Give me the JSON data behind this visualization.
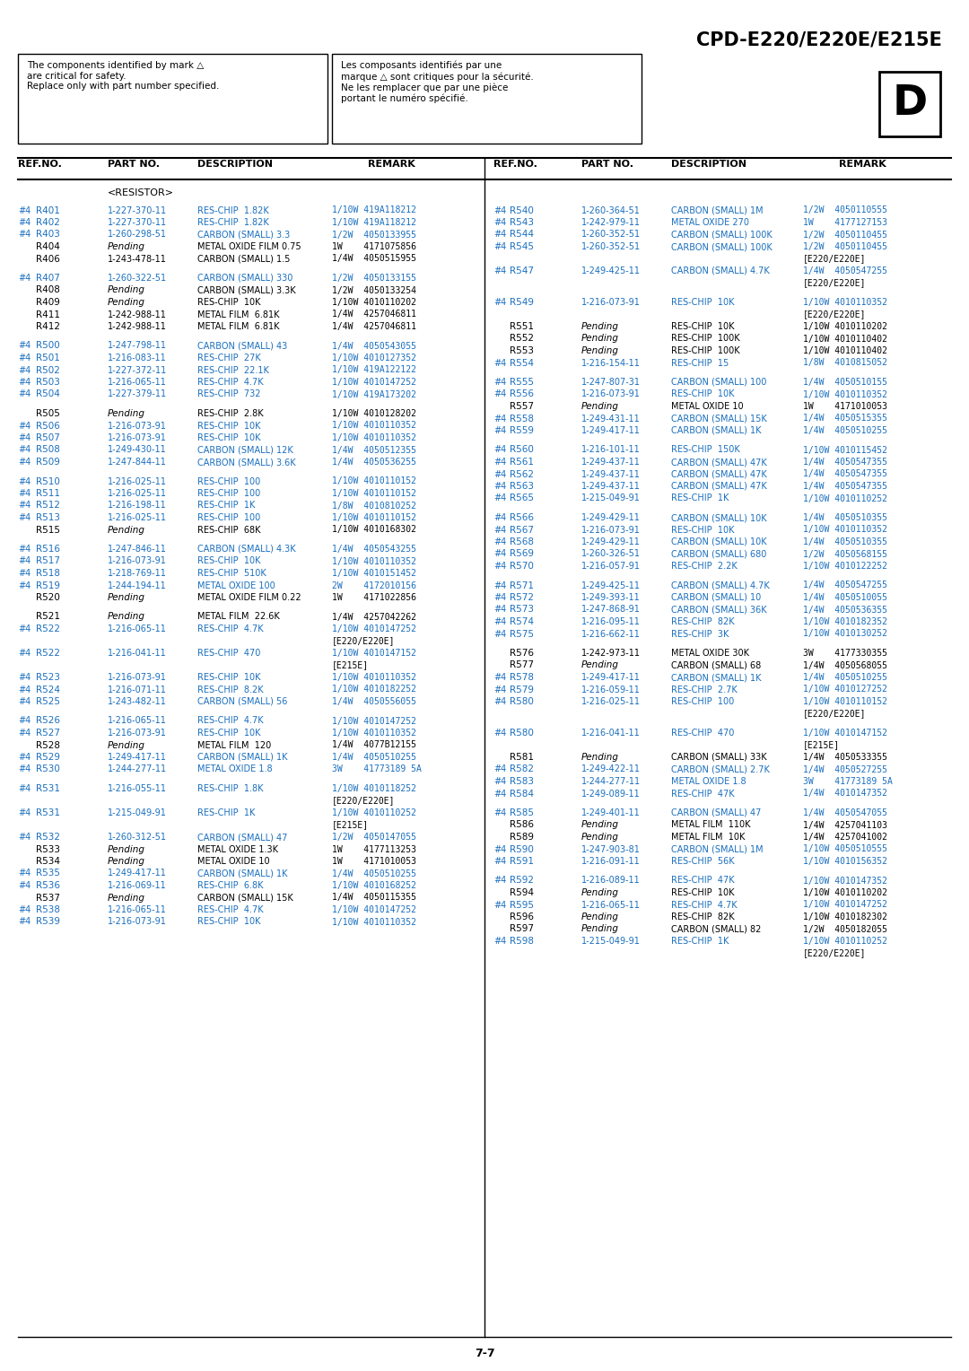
{
  "title": "CPD-E220/E220E/E215E",
  "section_label": "D",
  "warning_text_en": "The components identified by mark △\nare critical for safety.\nReplace only with part number specified.",
  "warning_text_fr": "Les composants identifiés par une\nmarque △ sont critiques pour la sécurité.\nNe les remplacer que par une pièce\nportant le numéro spécifié.",
  "category": "<RESISTOR>",
  "blue": "#1a6fbe",
  "black": "#000000",
  "left_rows": [
    [
      "#4",
      "R401",
      "1-227-370-11",
      "RES-CHIP",
      "1.82K",
      "1/10W 419A118212"
    ],
    [
      "#4",
      "R402",
      "1-227-370-11",
      "RES-CHIP",
      "1.82K",
      "1/10W 419A118212"
    ],
    [
      "#4",
      "R403",
      "1-260-298-51",
      "CARBON (SMALL) 3.3",
      "",
      "1/2W  4050133955"
    ],
    [
      "",
      "R404",
      "Pending",
      "METAL OXIDE FILM 0.75",
      "",
      "1W    4171075856"
    ],
    [
      "",
      "R406",
      "1-243-478-11",
      "CARBON (SMALL) 1.5",
      "",
      "1/4W  4050515955"
    ],
    [
      "",
      "",
      "",
      "",
      "",
      ""
    ],
    [
      "#4",
      "R407",
      "1-260-322-51",
      "CARBON (SMALL) 330",
      "",
      "1/2W  4050133155"
    ],
    [
      "",
      "R408",
      "Pending",
      "CARBON (SMALL) 3.3K",
      "",
      "1/2W  4050133254"
    ],
    [
      "",
      "R409",
      "Pending",
      "RES-CHIP",
      "10K",
      "1/10W 4010110202"
    ],
    [
      "",
      "R411",
      "1-242-988-11",
      "METAL FILM",
      "6.81K",
      "1/4W  4257046811"
    ],
    [
      "",
      "R412",
      "1-242-988-11",
      "METAL FILM",
      "6.81K",
      "1/4W  4257046811"
    ],
    [
      "",
      "",
      "",
      "",
      "",
      ""
    ],
    [
      "#4",
      "R500",
      "1-247-798-11",
      "CARBON (SMALL) 43",
      "",
      "1/4W  4050543055"
    ],
    [
      "#4",
      "R501",
      "1-216-083-11",
      "RES-CHIP",
      "27K",
      "1/10W 4010127352"
    ],
    [
      "#4",
      "R502",
      "1-227-372-11",
      "RES-CHIP",
      "22.1K",
      "1/10W 419A122122"
    ],
    [
      "#4",
      "R503",
      "1-216-065-11",
      "RES-CHIP",
      "4.7K",
      "1/10W 4010147252"
    ],
    [
      "#4",
      "R504",
      "1-227-379-11",
      "RES-CHIP",
      "732",
      "1/10W 419A173202"
    ],
    [
      "",
      "",
      "",
      "",
      "",
      ""
    ],
    [
      "",
      "R505",
      "Pending",
      "RES-CHIP",
      "2.8K",
      "1/10W 4010128202"
    ],
    [
      "#4",
      "R506",
      "1-216-073-91",
      "RES-CHIP",
      "10K",
      "1/10W 4010110352"
    ],
    [
      "#4",
      "R507",
      "1-216-073-91",
      "RES-CHIP",
      "10K",
      "1/10W 4010110352"
    ],
    [
      "#4",
      "R508",
      "1-249-430-11",
      "CARBON (SMALL) 12K",
      "",
      "1/4W  4050512355"
    ],
    [
      "#4",
      "R509",
      "1-247-844-11",
      "CARBON (SMALL) 3.6K",
      "",
      "1/4W  4050536255"
    ],
    [
      "",
      "",
      "",
      "",
      "",
      ""
    ],
    [
      "#4",
      "R510",
      "1-216-025-11",
      "RES-CHIP",
      "100",
      "1/10W 4010110152"
    ],
    [
      "#4",
      "R511",
      "1-216-025-11",
      "RES-CHIP",
      "100",
      "1/10W 4010110152"
    ],
    [
      "#4",
      "R512",
      "1-216-198-11",
      "RES-CHIP",
      "1K",
      "1/8W  4010810252"
    ],
    [
      "#4",
      "R513",
      "1-216-025-11",
      "RES-CHIP",
      "100",
      "1/10W 4010110152"
    ],
    [
      "",
      "R515",
      "Pending",
      "RES-CHIP",
      "68K",
      "1/10W 4010168302"
    ],
    [
      "",
      "",
      "",
      "",
      "",
      ""
    ],
    [
      "#4",
      "R516",
      "1-247-846-11",
      "CARBON (SMALL) 4.3K",
      "",
      "1/4W  4050543255"
    ],
    [
      "#4",
      "R517",
      "1-216-073-91",
      "RES-CHIP",
      "10K",
      "1/10W 4010110352"
    ],
    [
      "#4",
      "R518",
      "1-218-769-11",
      "RES-CHIP",
      "510K",
      "1/10W 4010151452"
    ],
    [
      "#4",
      "R519",
      "1-244-194-11",
      "METAL OXIDE 100",
      "",
      "2W    4172010156"
    ],
    [
      "",
      "R520",
      "Pending",
      "METAL OXIDE FILM 0.22",
      "",
      "1W    4171022856"
    ],
    [
      "",
      "",
      "",
      "",
      "",
      ""
    ],
    [
      "",
      "R521",
      "Pending",
      "METAL FILM",
      "22.6K",
      "1/4W  4257042262"
    ],
    [
      "#4",
      "R522",
      "1-216-065-11",
      "RES-CHIP",
      "4.7K",
      "1/10W 4010147252"
    ],
    [
      "",
      "",
      "",
      "",
      "",
      "[E220/E220E]"
    ],
    [
      "#4",
      "R522",
      "1-216-041-11",
      "RES-CHIP",
      "470",
      "1/10W 4010147152"
    ],
    [
      "",
      "",
      "",
      "",
      "",
      "[E215E]"
    ],
    [
      "#4",
      "R523",
      "1-216-073-91",
      "RES-CHIP",
      "10K",
      "1/10W 4010110352"
    ],
    [
      "#4",
      "R524",
      "1-216-071-11",
      "RES-CHIP",
      "8.2K",
      "1/10W 4010182252"
    ],
    [
      "#4",
      "R525",
      "1-243-482-11",
      "CARBON (SMALL) 56",
      "",
      "1/4W  4050556055"
    ],
    [
      "",
      "",
      "",
      "",
      "",
      ""
    ],
    [
      "#4",
      "R526",
      "1-216-065-11",
      "RES-CHIP",
      "4.7K",
      "1/10W 4010147252"
    ],
    [
      "#4",
      "R527",
      "1-216-073-91",
      "RES-CHIP",
      "10K",
      "1/10W 4010110352"
    ],
    [
      "",
      "R528",
      "Pending",
      "METAL FILM",
      "120",
      "1/4W  4077B12155"
    ],
    [
      "#4",
      "R529",
      "1-249-417-11",
      "CARBON (SMALL) 1K",
      "",
      "1/4W  4050510255"
    ],
    [
      "#4",
      "R530",
      "1-244-277-11",
      "METAL OXIDE 1.8",
      "",
      "3W    41773189 5A"
    ],
    [
      "",
      "",
      "",
      "",
      "",
      ""
    ],
    [
      "#4",
      "R531",
      "1-216-055-11",
      "RES-CHIP",
      "1.8K",
      "1/10W 4010118252"
    ],
    [
      "",
      "",
      "",
      "",
      "",
      "[E220/E220E]"
    ],
    [
      "#4",
      "R531",
      "1-215-049-91",
      "RES-CHIP",
      "1K",
      "1/10W 4010110252"
    ],
    [
      "",
      "",
      "",
      "",
      "",
      "[E215E]"
    ],
    [
      "#4",
      "R532",
      "1-260-312-51",
      "CARBON (SMALL) 47",
      "",
      "1/2W  4050147055"
    ],
    [
      "",
      "R533",
      "Pending",
      "METAL OXIDE 1.3K",
      "",
      "1W    4177113253"
    ],
    [
      "",
      "R534",
      "Pending",
      "METAL OXIDE 10",
      "",
      "1W    4171010053"
    ],
    [
      "#4",
      "R535",
      "1-249-417-11",
      "CARBON (SMALL) 1K",
      "",
      "1/4W  4050510255"
    ],
    [
      "#4",
      "R536",
      "1-216-069-11",
      "RES-CHIP",
      "6.8K",
      "1/10W 4010168252"
    ],
    [
      "",
      "R537",
      "Pending",
      "CARBON (SMALL) 15K",
      "",
      "1/4W  4050115355"
    ],
    [
      "#4",
      "R538",
      "1-216-065-11",
      "RES-CHIP",
      "4.7K",
      "1/10W 4010147252"
    ],
    [
      "#4",
      "R539",
      "1-216-073-91",
      "RES-CHIP",
      "10K",
      "1/10W 4010110352"
    ]
  ],
  "right_rows": [
    [
      "#4",
      "R540",
      "1-260-364-51",
      "CARBON (SMALL) 1M",
      "",
      "1/2W  4050110555"
    ],
    [
      "#4",
      "R543",
      "1-242-979-11",
      "METAL OXIDE 270",
      "",
      "1W    4177127153"
    ],
    [
      "#4",
      "R544",
      "1-260-352-51",
      "CARBON (SMALL) 100K",
      "",
      "1/2W  4050110455"
    ],
    [
      "#4",
      "R545",
      "1-260-352-51",
      "CARBON (SMALL) 100K",
      "",
      "1/2W  4050110455"
    ],
    [
      "",
      "",
      "",
      "",
      "",
      "[E220/E220E]"
    ],
    [
      "#4",
      "R547",
      "1-249-425-11",
      "CARBON (SMALL) 4.7K",
      "",
      "1/4W  4050547255"
    ],
    [
      "",
      "",
      "",
      "",
      "",
      "[E220/E220E]"
    ],
    [
      "",
      "",
      "",
      "",
      "",
      ""
    ],
    [
      "#4",
      "R549",
      "1-216-073-91",
      "RES-CHIP",
      "10K",
      "1/10W 4010110352"
    ],
    [
      "",
      "",
      "",
      "",
      "",
      "[E220/E220E]"
    ],
    [
      "",
      "R551",
      "Pending",
      "RES-CHIP",
      "10K",
      "1/10W 4010110202"
    ],
    [
      "",
      "R552",
      "Pending",
      "RES-CHIP",
      "100K",
      "1/10W 4010110402"
    ],
    [
      "",
      "R553",
      "Pending",
      "RES-CHIP",
      "100K",
      "1/10W 4010110402"
    ],
    [
      "#4",
      "R554",
      "1-216-154-11",
      "RES-CHIP",
      "15",
      "1/8W  4010815052"
    ],
    [
      "",
      "",
      "",
      "",
      "",
      ""
    ],
    [
      "#4",
      "R555",
      "1-247-807-31",
      "CARBON (SMALL) 100",
      "",
      "1/4W  4050510155"
    ],
    [
      "#4",
      "R556",
      "1-216-073-91",
      "RES-CHIP",
      "10K",
      "1/10W 4010110352"
    ],
    [
      "",
      "R557",
      "Pending",
      "METAL OXIDE 10",
      "",
      "1W    4171010053"
    ],
    [
      "#4",
      "R558",
      "1-249-431-11",
      "CARBON (SMALL) 15K",
      "",
      "1/4W  4050515355"
    ],
    [
      "#4",
      "R559",
      "1-249-417-11",
      "CARBON (SMALL) 1K",
      "",
      "1/4W  4050510255"
    ],
    [
      "",
      "",
      "",
      "",
      "",
      ""
    ],
    [
      "#4",
      "R560",
      "1-216-101-11",
      "RES-CHIP",
      "150K",
      "1/10W 4010115452"
    ],
    [
      "#4",
      "R561",
      "1-249-437-11",
      "CARBON (SMALL) 47K",
      "",
      "1/4W  4050547355"
    ],
    [
      "#4",
      "R562",
      "1-249-437-11",
      "CARBON (SMALL) 47K",
      "",
      "1/4W  4050547355"
    ],
    [
      "#4",
      "R563",
      "1-249-437-11",
      "CARBON (SMALL) 47K",
      "",
      "1/4W  4050547355"
    ],
    [
      "#4",
      "R565",
      "1-215-049-91",
      "RES-CHIP",
      "1K",
      "1/10W 4010110252"
    ],
    [
      "",
      "",
      "",
      "",
      "",
      ""
    ],
    [
      "#4",
      "R566",
      "1-249-429-11",
      "CARBON (SMALL) 10K",
      "",
      "1/4W  4050510355"
    ],
    [
      "#4",
      "R567",
      "1-216-073-91",
      "RES-CHIP",
      "10K",
      "1/10W 4010110352"
    ],
    [
      "#4",
      "R568",
      "1-249-429-11",
      "CARBON (SMALL) 10K",
      "",
      "1/4W  4050510355"
    ],
    [
      "#4",
      "R569",
      "1-260-326-51",
      "CARBON (SMALL) 680",
      "",
      "1/2W  4050568155"
    ],
    [
      "#4",
      "R570",
      "1-216-057-91",
      "RES-CHIP",
      "2.2K",
      "1/10W 4010122252"
    ],
    [
      "",
      "",
      "",
      "",
      "",
      ""
    ],
    [
      "#4",
      "R571",
      "1-249-425-11",
      "CARBON (SMALL) 4.7K",
      "",
      "1/4W  4050547255"
    ],
    [
      "#4",
      "R572",
      "1-249-393-11",
      "CARBON (SMALL) 10",
      "",
      "1/4W  4050510055"
    ],
    [
      "#4",
      "R573",
      "1-247-868-91",
      "CARBON (SMALL) 36K",
      "",
      "1/4W  4050536355"
    ],
    [
      "#4",
      "R574",
      "1-216-095-11",
      "RES-CHIP",
      "82K",
      "1/10W 4010182352"
    ],
    [
      "#4",
      "R575",
      "1-216-662-11",
      "RES-CHIP",
      "3K",
      "1/10W 4010130252"
    ],
    [
      "",
      "",
      "",
      "",
      "",
      ""
    ],
    [
      "",
      "R576",
      "1-242-973-11",
      "METAL OXIDE 30K",
      "",
      "3W    4177330355"
    ],
    [
      "",
      "R577",
      "Pending",
      "CARBON (SMALL) 68",
      "",
      "1/4W  4050568055"
    ],
    [
      "#4",
      "R578",
      "1-249-417-11",
      "CARBON (SMALL) 1K",
      "",
      "1/4W  4050510255"
    ],
    [
      "#4",
      "R579",
      "1-216-059-11",
      "RES-CHIP",
      "2.7K",
      "1/10W 4010127252"
    ],
    [
      "#4",
      "R580",
      "1-216-025-11",
      "RES-CHIP",
      "100",
      "1/10W 4010110152"
    ],
    [
      "",
      "",
      "",
      "",
      "",
      "[E220/E220E]"
    ],
    [
      "",
      "",
      "",
      "",
      "",
      ""
    ],
    [
      "#4",
      "R580",
      "1-216-041-11",
      "RES-CHIP",
      "470",
      "1/10W 4010147152"
    ],
    [
      "",
      "",
      "",
      "",
      "",
      "[E215E]"
    ],
    [
      "",
      "R581",
      "Pending",
      "CARBON (SMALL) 33K",
      "",
      "1/4W  4050533355"
    ],
    [
      "#4",
      "R582",
      "1-249-422-11",
      "CARBON (SMALL) 2.7K",
      "",
      "1/4W  4050527255"
    ],
    [
      "#4",
      "R583",
      "1-244-277-11",
      "METAL OXIDE 1.8",
      "",
      "3W    41773189 5A"
    ],
    [
      "#4",
      "R584",
      "1-249-089-11",
      "RES-CHIP",
      "47K",
      "1/4W  4010147352"
    ],
    [
      "",
      "",
      "",
      "",
      "",
      ""
    ],
    [
      "#4",
      "R585",
      "1-249-401-11",
      "CARBON (SMALL) 47",
      "",
      "1/4W  4050547055"
    ],
    [
      "",
      "R586",
      "Pending",
      "METAL FILM",
      "110K",
      "1/4W  4257041103"
    ],
    [
      "",
      "R589",
      "Pending",
      "METAL FILM",
      "10K",
      "1/4W  4257041002"
    ],
    [
      "#4",
      "R590",
      "1-247-903-81",
      "CARBON (SMALL) 1M",
      "",
      "1/10W 4050510555"
    ],
    [
      "#4",
      "R591",
      "1-216-091-11",
      "RES-CHIP",
      "56K",
      "1/10W 4010156352"
    ],
    [
      "",
      "",
      "",
      "",
      "",
      ""
    ],
    [
      "#4",
      "R592",
      "1-216-089-11",
      "RES-CHIP",
      "47K",
      "1/10W 4010147352"
    ],
    [
      "",
      "R594",
      "Pending",
      "RES-CHIP",
      "10K",
      "1/10W 4010110202"
    ],
    [
      "#4",
      "R595",
      "1-216-065-11",
      "RES-CHIP",
      "4.7K",
      "1/10W 4010147252"
    ],
    [
      "",
      "R596",
      "Pending",
      "RES-CHIP",
      "82K",
      "1/10W 4010182302"
    ],
    [
      "",
      "R597",
      "Pending",
      "CARBON (SMALL) 82",
      "",
      "1/2W  4050182055"
    ],
    [
      "#4",
      "R598",
      "1-215-049-91",
      "RES-CHIP",
      "1K",
      "1/10W 4010110252"
    ],
    [
      "",
      "",
      "",
      "",
      "",
      "[E220/E220E]"
    ]
  ],
  "page_number": "7-7"
}
